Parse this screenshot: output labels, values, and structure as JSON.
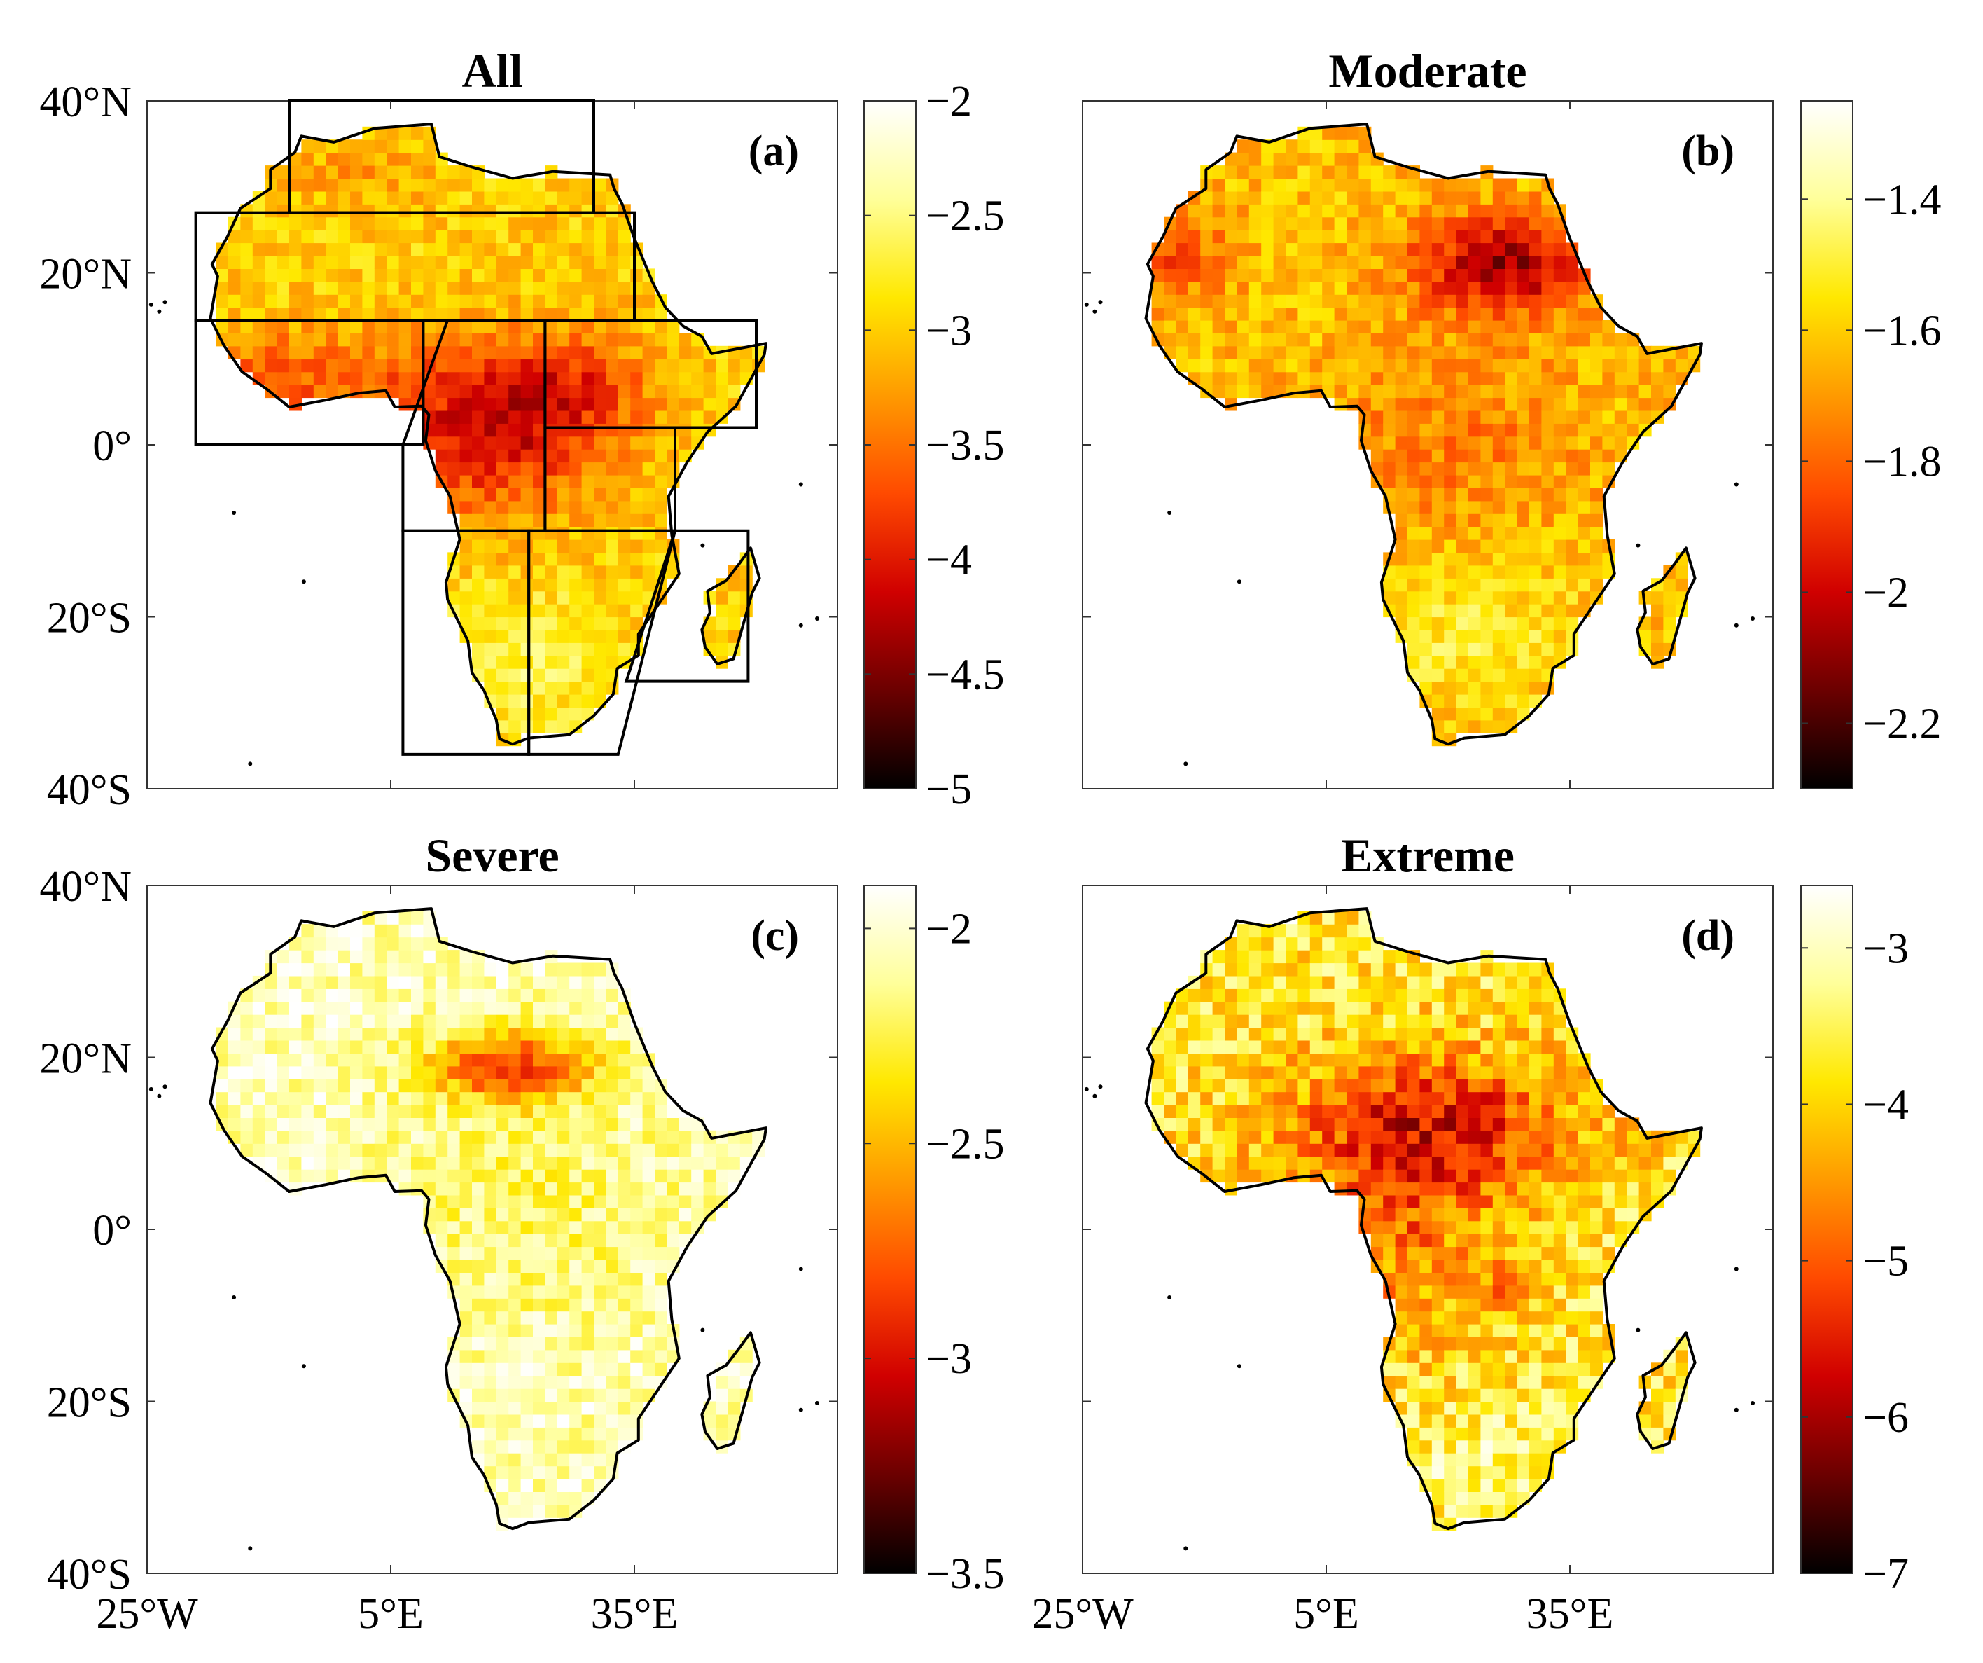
{
  "figure": {
    "panels": [
      {
        "id": "a",
        "title": "All",
        "label": "(a)",
        "cbar_ticks": [
          "−2",
          "−2.5",
          "−3",
          "−3.5",
          "−4",
          "−4.5",
          "−5"
        ],
        "cbar_range": [
          -5,
          -2
        ],
        "cbar_tick_values": [
          -2,
          -2.5,
          -3,
          -3.5,
          -4,
          -4.5,
          -5
        ],
        "has_regions": true
      },
      {
        "id": "b",
        "title": "Moderate",
        "label": "(b)",
        "cbar_ticks": [
          "−1.4",
          "−1.6",
          "−1.8",
          "−2",
          "−2.2"
        ],
        "cbar_range": [
          -2.3,
          -1.25
        ],
        "cbar_tick_values": [
          -1.4,
          -1.6,
          -1.8,
          -2,
          -2.2
        ],
        "has_regions": false
      },
      {
        "id": "c",
        "title": "Severe",
        "label": "(c)",
        "cbar_ticks": [
          "−2",
          "−2.5",
          "−3",
          "−3.5"
        ],
        "cbar_range": [
          -3.5,
          -1.9
        ],
        "cbar_tick_values": [
          -2,
          -2.5,
          -3,
          -3.5
        ],
        "has_regions": false
      },
      {
        "id": "d",
        "title": "Extreme",
        "label": "(d)",
        "cbar_ticks": [
          "−3",
          "−4",
          "−5",
          "−6",
          "−7"
        ],
        "cbar_range": [
          -7,
          -2.6
        ],
        "cbar_tick_values": [
          -3,
          -4,
          -5,
          -6,
          -7
        ],
        "has_regions": false
      }
    ],
    "lat_ticks": [
      "40°N",
      "20°N",
      "0°",
      "20°S",
      "40°S"
    ],
    "lat_tick_values": [
      40,
      20,
      0,
      -20,
      -40
    ],
    "lon_ticks": [
      "25°W",
      "5°E",
      "35°E"
    ],
    "lon_tick_values": [
      -25,
      5,
      35
    ],
    "lon_range": [
      -25,
      60
    ],
    "lat_range": [
      -40,
      40
    ],
    "colormap": [
      "#000000",
      "#6b0000",
      "#d00000",
      "#ff4a00",
      "#ff9a00",
      "#ffe800",
      "#ffff9a",
      "#ffffff"
    ]
  }
}
